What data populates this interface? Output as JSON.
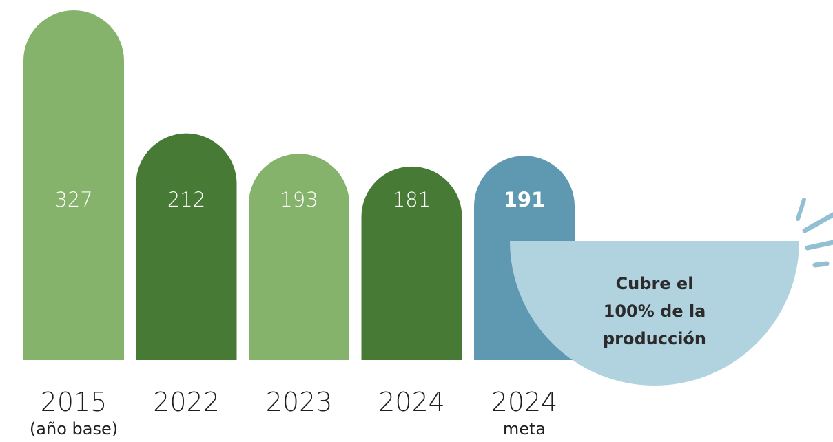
{
  "chart_data": {
    "type": "bar",
    "categories": [
      "2015",
      "2022",
      "2023",
      "2024",
      "2024"
    ],
    "category_sublabels": [
      "(año base)",
      "",
      "",
      "",
      "meta"
    ],
    "values": [
      327,
      212,
      193,
      181,
      191
    ],
    "value_labels": [
      "327",
      "212",
      "193",
      "181",
      "191"
    ],
    "bar_colors": [
      "#86b36c",
      "#477a35",
      "#86b36c",
      "#477a35",
      "#5e98b1"
    ],
    "highlight_index": 4,
    "title": "",
    "xlabel": "",
    "ylabel": "",
    "grid": false,
    "callout": {
      "line1": "Cubre el",
      "line2_bold": "100%",
      "line2_rest": " de la",
      "line3": "producción",
      "color": "#b1d3e0",
      "accent_color": "#93bfd2"
    }
  }
}
